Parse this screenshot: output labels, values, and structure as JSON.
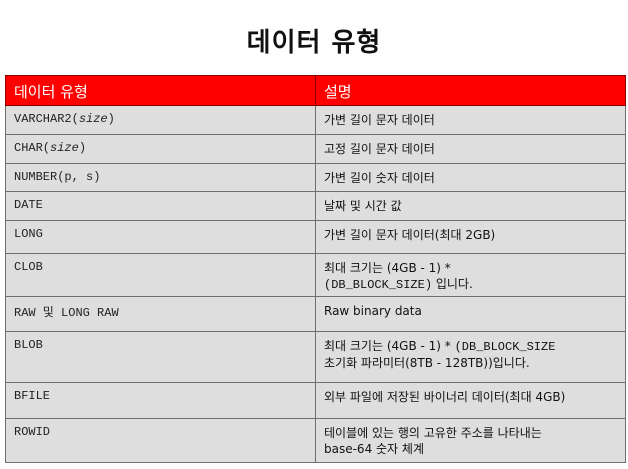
{
  "page": {
    "title": "데이터 유형"
  },
  "table": {
    "headers": [
      "데이터 유형",
      "설명"
    ],
    "rows": [
      {
        "type_a": "VARCHAR2(",
        "type_i": "size",
        "type_b": ")",
        "desc_a": "가변 길이 문자 데이터"
      },
      {
        "type_a": "CHAR(",
        "type_i": "size",
        "type_b": ")",
        "desc_a": "고정 길이 문자 데이터"
      },
      {
        "type_a": "NUMBER(p, s)",
        "desc_a": "가변 길이 숫자 데이터"
      },
      {
        "type_a": "DATE",
        "desc_a": "날짜 및 시간 값"
      },
      {
        "type_a": "LONG",
        "desc_a": "가변 길이 문자 데이터(최대 2GB)"
      },
      {
        "type_a": "CLOB",
        "desc_a": "최대 크기는 (4GB - 1) *",
        "desc_b_mono": "(DB_BLOCK_SIZE)",
        "desc_c": " 입니다."
      },
      {
        "type_a": "RAW 및 LONG RAW",
        "desc_a": "Raw binary data"
      },
      {
        "type_a": "BLOB",
        "desc_a": "최대 크기는 (4GB - 1) * ",
        "desc_a_mono": "(DB_BLOCK_SIZE",
        "desc_b": "초기화 파라미터(8TB - 128TB))입니다."
      },
      {
        "type_a": "BFILE",
        "desc_a": "외부 파일에 저장된 바이너리 데이터(최대 4GB)"
      },
      {
        "type_a": "ROWID",
        "desc_a": "테이블에 있는 행의 고유한 주소를 나타내는",
        "desc_b": "base-64 숫자 체계"
      }
    ]
  }
}
